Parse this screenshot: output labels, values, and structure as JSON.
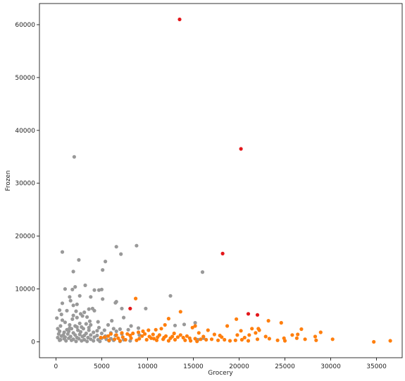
{
  "chart_data": {
    "type": "scatter",
    "title": "",
    "xlabel": "Grocery",
    "ylabel": "Frozen",
    "xlim": [
      -1800,
      37800
    ],
    "ylim": [
      -3000,
      64000
    ],
    "xticks": [
      0,
      5000,
      10000,
      15000,
      20000,
      25000,
      30000,
      35000
    ],
    "yticks": [
      0,
      10000,
      20000,
      30000,
      40000,
      50000,
      60000
    ],
    "xtick_labels": [
      "0",
      "5000",
      "10000",
      "15000",
      "20000",
      "25000",
      "30000",
      "35000"
    ],
    "ytick_labels": [
      "0",
      "10000",
      "20000",
      "30000",
      "40000",
      "50000",
      "60000"
    ],
    "grid": false,
    "legend": "none",
    "series": [
      {
        "color": "#999999",
        "points": [
          [
            2000,
            35000
          ],
          [
            700,
            17000
          ],
          [
            6600,
            18000
          ],
          [
            8800,
            18200
          ],
          [
            7100,
            16600
          ],
          [
            2500,
            15500
          ],
          [
            5400,
            15200
          ],
          [
            1900,
            13300
          ],
          [
            5100,
            13600
          ],
          [
            16000,
            13200
          ],
          [
            3200,
            10700
          ],
          [
            1000,
            10000
          ],
          [
            1800,
            9900
          ],
          [
            2100,
            10400
          ],
          [
            4200,
            9800
          ],
          [
            4700,
            9800
          ],
          [
            5000,
            9900
          ],
          [
            12500,
            8700
          ],
          [
            1500,
            8500
          ],
          [
            2600,
            8700
          ],
          [
            3800,
            8500
          ],
          [
            5100,
            8100
          ],
          [
            6600,
            7600
          ],
          [
            6500,
            7400
          ],
          [
            1600,
            7800
          ],
          [
            700,
            7300
          ],
          [
            2300,
            7100
          ],
          [
            1900,
            6900
          ],
          [
            3600,
            6200
          ],
          [
            4000,
            6300
          ],
          [
            7200,
            6300
          ],
          [
            9800,
            6300
          ],
          [
            400,
            6000
          ],
          [
            1200,
            5900
          ],
          [
            2200,
            5800
          ],
          [
            3100,
            5600
          ],
          [
            4200,
            5900
          ],
          [
            600,
            5200
          ],
          [
            1900,
            5000
          ],
          [
            2700,
            5300
          ],
          [
            3400,
            4700
          ],
          [
            100,
            4500
          ],
          [
            700,
            4100
          ],
          [
            1800,
            4300
          ],
          [
            2300,
            4600
          ],
          [
            2900,
            4900
          ],
          [
            3700,
            3900
          ],
          [
            4600,
            3800
          ],
          [
            6100,
            4000
          ],
          [
            7400,
            4600
          ],
          [
            1000,
            3700
          ],
          [
            2600,
            3500
          ],
          [
            3300,
            3400
          ],
          [
            5700,
            3200
          ],
          [
            13000,
            3100
          ],
          [
            14000,
            3300
          ],
          [
            15200,
            3600
          ],
          [
            500,
            3000
          ],
          [
            1500,
            3200
          ],
          [
            2100,
            3000
          ],
          [
            2800,
            2800
          ],
          [
            3800,
            3200
          ],
          [
            4700,
            2700
          ],
          [
            6300,
            2500
          ],
          [
            7000,
            2400
          ],
          [
            8200,
            3000
          ],
          [
            9000,
            2600
          ],
          [
            200,
            2500
          ],
          [
            1200,
            2300
          ],
          [
            1700,
            2500
          ],
          [
            2400,
            2200
          ],
          [
            3000,
            2500
          ],
          [
            3600,
            2200
          ],
          [
            4500,
            2100
          ],
          [
            5300,
            2200
          ],
          [
            6600,
            2000
          ],
          [
            7900,
            2300
          ],
          [
            400,
            2000
          ],
          [
            900,
            1800
          ],
          [
            1400,
            2000
          ],
          [
            1900,
            1700
          ],
          [
            2700,
            1900
          ],
          [
            3300,
            1600
          ],
          [
            4100,
            1800
          ],
          [
            5000,
            1600
          ],
          [
            6000,
            1700
          ],
          [
            7200,
            1500
          ],
          [
            300,
            1500
          ],
          [
            800,
            1300
          ],
          [
            1300,
            1500
          ],
          [
            2100,
            1300
          ],
          [
            2600,
            1400
          ],
          [
            3100,
            1200
          ],
          [
            3800,
            1300
          ],
          [
            4500,
            1200
          ],
          [
            5400,
            1100
          ],
          [
            6500,
            1200
          ],
          [
            600,
            1100
          ],
          [
            1000,
            900
          ],
          [
            1600,
            1000
          ],
          [
            2300,
            800
          ],
          [
            2900,
            1000
          ],
          [
            3500,
            800
          ],
          [
            4200,
            900
          ],
          [
            5000,
            700
          ],
          [
            200,
            800
          ],
          [
            900,
            600
          ],
          [
            1400,
            700
          ],
          [
            1900,
            500
          ],
          [
            2500,
            600
          ],
          [
            3100,
            400
          ],
          [
            3800,
            500
          ],
          [
            4600,
            400
          ],
          [
            5500,
            500
          ],
          [
            6300,
            300
          ],
          [
            7400,
            400
          ],
          [
            400,
            300
          ],
          [
            1100,
            200
          ],
          [
            1700,
            300
          ],
          [
            2200,
            100
          ],
          [
            2800,
            200
          ],
          [
            3400,
            100
          ],
          [
            4100,
            200
          ],
          [
            4800,
            100
          ],
          [
            5800,
            200
          ],
          [
            7000,
            100
          ],
          [
            8100,
            200
          ],
          [
            16100,
            700
          ],
          [
            15500,
            400
          ],
          [
            2300,
            2800
          ],
          [
            1500,
            2600
          ],
          [
            3600,
            2700
          ],
          [
            6000,
            600
          ],
          [
            9100,
            1300
          ],
          [
            500,
            400
          ]
        ]
      },
      {
        "color": "#ff7f0e",
        "points": [
          [
            8700,
            8200
          ],
          [
            13600,
            5700
          ],
          [
            12300,
            4400
          ],
          [
            19700,
            4300
          ],
          [
            24600,
            3600
          ],
          [
            23200,
            4000
          ],
          [
            18700,
            3000
          ],
          [
            15200,
            3000
          ],
          [
            14900,
            2700
          ],
          [
            16600,
            2200
          ],
          [
            21400,
            2500
          ],
          [
            22100,
            2500
          ],
          [
            22200,
            2200
          ],
          [
            26800,
            2400
          ],
          [
            28900,
            1800
          ],
          [
            26400,
            1400
          ],
          [
            20200,
            2100
          ],
          [
            21800,
            1700
          ],
          [
            17300,
            1400
          ],
          [
            19800,
            1300
          ],
          [
            25800,
            1300
          ],
          [
            28300,
            1000
          ],
          [
            30200,
            500
          ],
          [
            34700,
            0
          ],
          [
            36500,
            200
          ],
          [
            11900,
            3200
          ],
          [
            11500,
            2500
          ],
          [
            10900,
            2300
          ],
          [
            10100,
            2200
          ],
          [
            9500,
            2000
          ],
          [
            9000,
            1800
          ],
          [
            8400,
            1600
          ],
          [
            7800,
            1500
          ],
          [
            7200,
            1700
          ],
          [
            6600,
            1300
          ],
          [
            6000,
            1500
          ],
          [
            5700,
            1100
          ],
          [
            5300,
            900
          ],
          [
            4900,
            800
          ],
          [
            9700,
            1500
          ],
          [
            10600,
            1400
          ],
          [
            11300,
            1300
          ],
          [
            12000,
            1100
          ],
          [
            12700,
            1000
          ],
          [
            13300,
            900
          ],
          [
            13900,
            800
          ],
          [
            14600,
            700
          ],
          [
            15200,
            600
          ],
          [
            15800,
            500
          ],
          [
            16400,
            400
          ],
          [
            17000,
            500
          ],
          [
            17700,
            300
          ],
          [
            18400,
            400
          ],
          [
            19000,
            200
          ],
          [
            19600,
            300
          ],
          [
            20300,
            400
          ],
          [
            21000,
            200
          ],
          [
            22000,
            500
          ],
          [
            23300,
            600
          ],
          [
            24200,
            300
          ],
          [
            25000,
            200
          ],
          [
            26300,
            700
          ],
          [
            27200,
            500
          ],
          [
            28400,
            300
          ],
          [
            9100,
            600
          ],
          [
            9900,
            400
          ],
          [
            10400,
            700
          ],
          [
            11000,
            300
          ],
          [
            11700,
            500
          ],
          [
            12300,
            200
          ],
          [
            13000,
            400
          ],
          [
            14100,
            300
          ],
          [
            14700,
            200
          ],
          [
            15400,
            100
          ],
          [
            8200,
            700
          ],
          [
            8800,
            300
          ],
          [
            7600,
            400
          ],
          [
            7000,
            200
          ],
          [
            6400,
            500
          ],
          [
            5800,
            300
          ],
          [
            10200,
            1000
          ],
          [
            11100,
            900
          ],
          [
            11800,
            800
          ],
          [
            12500,
            700
          ],
          [
            13600,
            1300
          ],
          [
            14300,
            1100
          ],
          [
            16100,
            1000
          ],
          [
            18100,
            900
          ],
          [
            20600,
            800
          ],
          [
            22900,
            1000
          ],
          [
            9400,
            1100
          ],
          [
            8100,
            1200
          ],
          [
            7300,
            900
          ],
          [
            6800,
            700
          ],
          [
            10700,
            600
          ],
          [
            12900,
            1600
          ],
          [
            15600,
            1700
          ],
          [
            17900,
            1200
          ],
          [
            21100,
            1300
          ],
          [
            24900,
            700
          ]
        ]
      },
      {
        "color": "#e3171b",
        "points": [
          [
            13500,
            61000
          ],
          [
            20200,
            36500
          ],
          [
            18200,
            16700
          ],
          [
            21000,
            5300
          ],
          [
            22000,
            5100
          ],
          [
            8100,
            6300
          ]
        ]
      }
    ]
  }
}
